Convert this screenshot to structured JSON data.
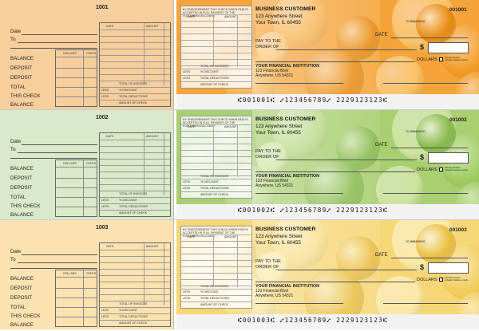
{
  "checks": [
    {
      "stub_number": "1001",
      "check_number": "001001",
      "stub_color": "#f8ce9c",
      "panel_color": "#f5a43a",
      "fruit_colors": [
        "#f39a22",
        "#f7b04a",
        "#e88a10",
        "#fbc268"
      ],
      "micr": "⑆001001⑆ ⑇123456789⑇ 2229123123⑆"
    },
    {
      "stub_number": "1002",
      "check_number": "001002",
      "stub_color": "#d9e9c9",
      "panel_color": "#a8cf70",
      "fruit_colors": [
        "#9fcb5e",
        "#b8d884",
        "#86b94a",
        "#cde39e"
      ],
      "micr": "⑆001002⑆ ⑇123456789⑇ 2229123123⑆"
    },
    {
      "stub_number": "1003",
      "check_number": "001003",
      "stub_color": "#fbe2b0",
      "panel_color": "#f6d676",
      "fruit_colors": [
        "#f2cd5a",
        "#f8de88",
        "#e9bd3e",
        "#fbe9a8"
      ],
      "micr": "⑆001003⑆ ⑇123456789⑇ 2229123123⑆"
    }
  ],
  "stub": {
    "date": "Date",
    "to": "To",
    "dollars": "DOLLARS",
    "cents": "CENTS",
    "balance": "BALANCE",
    "deposit": "DEPOSIT",
    "total": "TOTAL",
    "this_check": "THIS CHECK",
    "ledger_date": "DATE",
    "ledger_amount": "AMOUNT",
    "total_invoices": "TOTAL OF INVOICES",
    "less": "LESS",
    "discount": "% DISCOUNT",
    "total_deductions": "TOTAL DEDUCTIONS",
    "amount_of_check": "AMOUNT OF CHECK"
  },
  "endorse": {
    "header": "BY ENDORSEMENT THIS CHECK WHEN PAID IS ACCEPTED IN FULL PAYMENT OF THE FOLLOWING ACCOUNT",
    "date": "DATE",
    "amount": "AMOUNT"
  },
  "business": {
    "name": "BUSINESS CUSTOMER",
    "street": "123 Anywhere Street",
    "city": "Your Town, IL 60455"
  },
  "check_face": {
    "routing_fraction": "70-8888/0000",
    "date": "DATE",
    "pay_to": "PAY TO THE",
    "order_of": "ORDER OF",
    "dollar_sign": "$",
    "dollars": "DOLLARS",
    "security": "Security features included. Details on back."
  },
  "bank": {
    "name": "YOUR FINANCIAL INSTITUTION",
    "street": "123 Financial Blvd",
    "city": "Anywhere, US 54321"
  }
}
